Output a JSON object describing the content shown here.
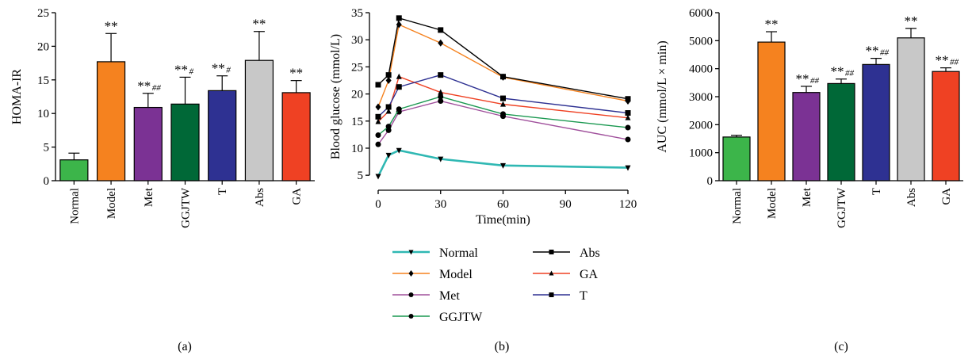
{
  "chart_data": [
    {
      "type": "bar",
      "panel_label": "(a)",
      "ylabel": "HOMA-IR",
      "ylim": [
        0,
        25
      ],
      "yticks": [
        "0",
        "5",
        "10",
        "15",
        "20",
        "25"
      ],
      "categories": [
        "Normal",
        "Model",
        "Met",
        "GGJTW",
        "T",
        "Abs",
        "GA"
      ],
      "values": [
        3.1,
        17.7,
        10.9,
        11.4,
        13.4,
        17.9,
        13.1
      ],
      "errors": [
        1.0,
        4.2,
        2.1,
        4.0,
        2.2,
        4.3,
        1.8
      ],
      "colors": [
        "#3cb54a",
        "#f5821f",
        "#7b3294",
        "#006837",
        "#2e3192",
        "#c8c8c8",
        "#ef4123"
      ],
      "stars": [
        "",
        "**",
        "**",
        "**",
        "**",
        "**",
        "**"
      ],
      "hashes": [
        "",
        "",
        "##",
        "#",
        "#",
        "",
        ""
      ]
    },
    {
      "type": "line",
      "panel_label": "(b)",
      "xlabel": "Time(min)",
      "ylabel": "Blood glucose (mmol/L)",
      "xlim": [
        0,
        120
      ],
      "ylim": [
        4,
        35
      ],
      "xticks": [
        "0",
        "30",
        "60",
        "90",
        "120"
      ],
      "yticks": [
        "5",
        "10",
        "15",
        "20",
        "25",
        "30",
        "35"
      ],
      "x": [
        0,
        5,
        10,
        30,
        60,
        120
      ],
      "series": [
        {
          "name": "Normal",
          "color": "#2fb8b3",
          "marker": "triangle-down",
          "values": [
            4.8,
            8.7,
            9.6,
            8.0,
            6.8,
            6.4
          ]
        },
        {
          "name": "Model",
          "color": "#f5821f",
          "marker": "diamond",
          "values": [
            17.6,
            22.5,
            32.8,
            29.4,
            23.1,
            18.7
          ]
        },
        {
          "name": "Met",
          "color": "#a0509c",
          "marker": "circle",
          "values": [
            10.7,
            13.3,
            16.7,
            18.7,
            15.9,
            11.6
          ]
        },
        {
          "name": "GGJTW",
          "color": "#1a9850",
          "marker": "circle",
          "values": [
            12.4,
            14.0,
            17.2,
            19.5,
            16.3,
            13.8
          ]
        },
        {
          "name": "Abs",
          "color": "#000000",
          "marker": "square",
          "values": [
            21.7,
            23.5,
            34.0,
            31.8,
            23.2,
            19.1
          ]
        },
        {
          "name": "GA",
          "color": "#ef4123",
          "marker": "triangle-up",
          "values": [
            14.9,
            16.8,
            23.2,
            20.3,
            18.1,
            15.6
          ]
        },
        {
          "name": "T",
          "color": "#2e3192",
          "marker": "square",
          "values": [
            15.8,
            17.6,
            21.3,
            23.5,
            19.2,
            16.5
          ]
        }
      ]
    },
    {
      "type": "bar",
      "panel_label": "(c)",
      "ylabel": "AUC (mmol/L × min)",
      "ylim": [
        0,
        6000
      ],
      "yticks": [
        "0",
        "1000",
        "2000",
        "3000",
        "4000",
        "5000",
        "6000"
      ],
      "categories": [
        "Normal",
        "Model",
        "Met",
        "GGJTW",
        "T",
        "Abs",
        "GA"
      ],
      "values": [
        1560,
        4950,
        3150,
        3470,
        4150,
        5100,
        3900
      ],
      "errors": [
        60,
        370,
        220,
        160,
        220,
        340,
        130
      ],
      "colors": [
        "#3cb54a",
        "#f5821f",
        "#7b3294",
        "#006837",
        "#2e3192",
        "#c8c8c8",
        "#ef4123"
      ],
      "stars": [
        "",
        "**",
        "**",
        "**",
        "**",
        "**",
        "**"
      ],
      "hashes": [
        "",
        "",
        "##",
        "##",
        "##",
        "",
        "##"
      ]
    }
  ]
}
